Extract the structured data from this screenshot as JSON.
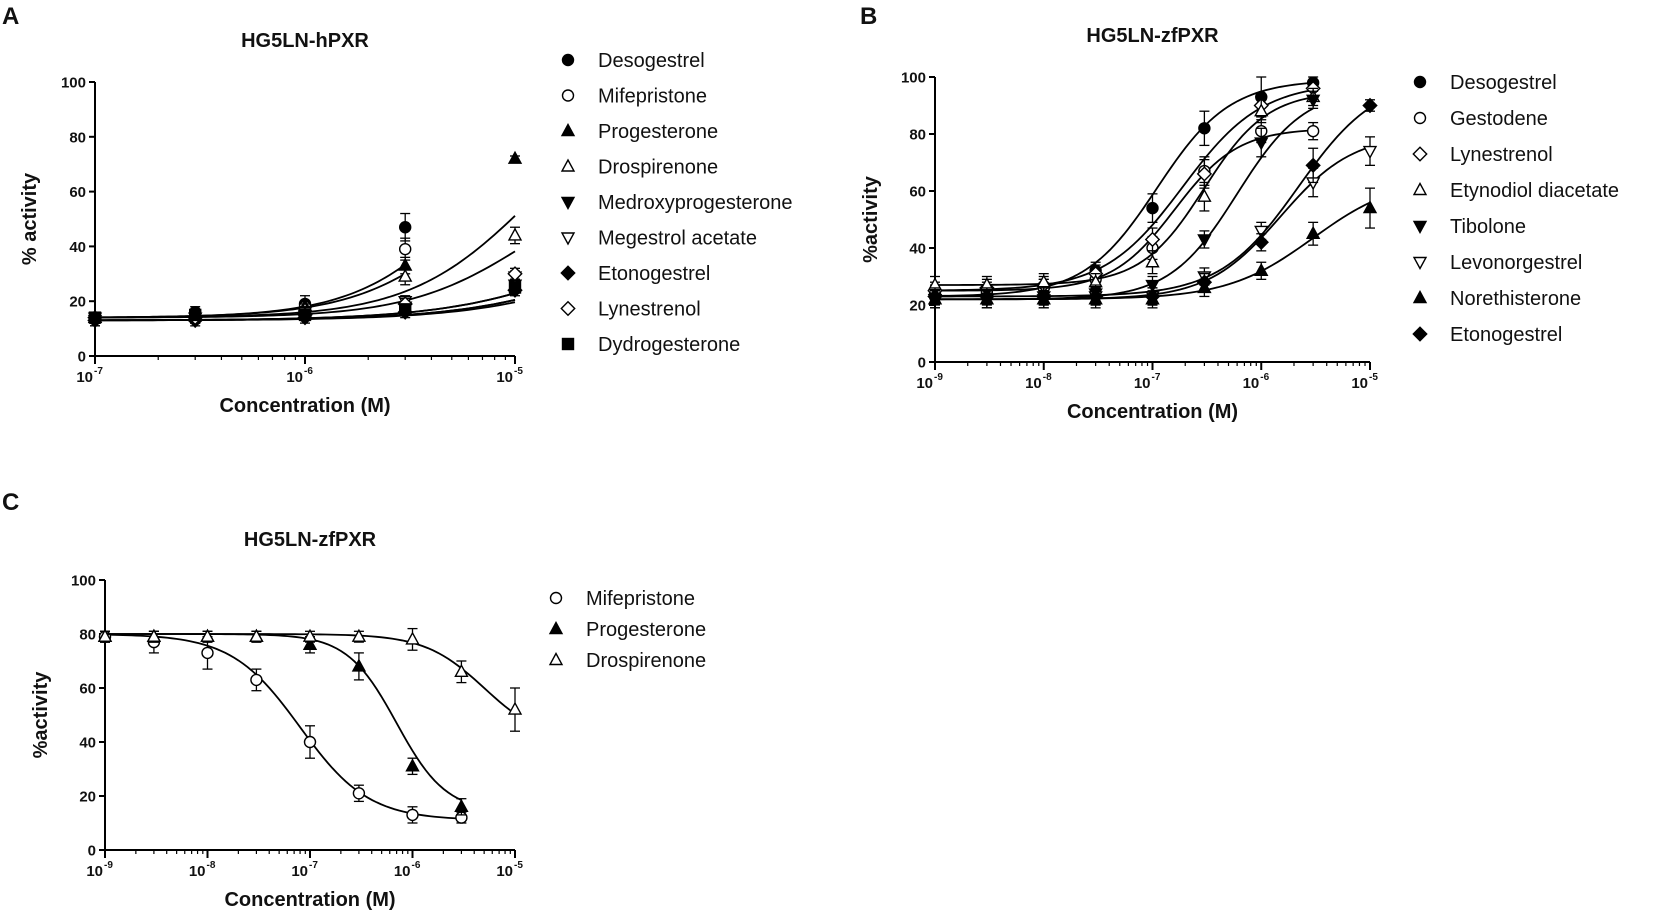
{
  "panels": [
    "A",
    "B",
    "C"
  ],
  "chart_data": [
    {
      "panel": "A",
      "type": "scatter",
      "title": "HG5LN-hPXR",
      "xlabel": "Concentration (M)",
      "ylabel": "% activity",
      "xscale": "log",
      "xlim": [
        1e-07,
        1e-05
      ],
      "ylim": [
        0,
        100
      ],
      "xticks": [
        {
          "base": "10",
          "exp": "-7",
          "value": 1e-07
        },
        {
          "base": "10",
          "exp": "-6",
          "value": 1e-06
        },
        {
          "base": "10",
          "exp": "-5",
          "value": 1e-05
        }
      ],
      "yticks": [
        0,
        20,
        40,
        60,
        80,
        100
      ],
      "legend_position": "right",
      "series": [
        {
          "name": "Desogestrel",
          "marker": "circle-filled",
          "x": [
            1e-07,
            3e-07,
            1e-06,
            3e-06
          ],
          "y": [
            14,
            16,
            19,
            47
          ],
          "err": [
            2,
            2,
            3,
            5
          ],
          "curve": {
            "bottom": 14,
            "top": 100,
            "ec50": 6.5e-06,
            "hill": 1.6
          }
        },
        {
          "name": "Mifepristone",
          "marker": "circle-open",
          "x": [
            1e-07,
            3e-07,
            1e-06,
            3e-06
          ],
          "y": [
            14,
            15,
            18,
            39
          ],
          "err": [
            2,
            2,
            2,
            4
          ],
          "curve": {
            "bottom": 14,
            "top": 100,
            "ec50": 8e-06,
            "hill": 1.5
          }
        },
        {
          "name": "Progesterone",
          "marker": "triangle-filled",
          "x": [
            1e-07,
            3e-07,
            1e-06,
            3e-06,
            1e-05
          ],
          "y": [
            14,
            15,
            18,
            33,
            72
          ],
          "err": [
            2,
            2,
            2,
            3,
            1
          ],
          "curve": {
            "bottom": 14,
            "top": 100,
            "ec50": 1.2e-05,
            "hill": 1.5
          }
        },
        {
          "name": "Drospirenone",
          "marker": "triangle-open",
          "x": [
            1e-07,
            3e-07,
            1e-06,
            3e-06,
            1e-05
          ],
          "y": [
            14,
            15,
            17,
            29,
            44
          ],
          "err": [
            2,
            2,
            2,
            3,
            3
          ],
          "curve": {
            "bottom": 14,
            "top": 70,
            "ec50": 1.2e-05,
            "hill": 1.5
          }
        },
        {
          "name": "Medroxyprogesterone",
          "marker": "triangle-down-filled",
          "x": [
            1e-07,
            3e-07,
            1e-06,
            3e-06,
            1e-05
          ],
          "y": [
            13,
            14,
            15,
            18,
            26
          ],
          "err": [
            2,
            2,
            2,
            2,
            2
          ],
          "curve": {
            "bottom": 13,
            "top": 60,
            "ec50": 4e-05,
            "hill": 1.2
          }
        },
        {
          "name": "Megestrol acetate",
          "marker": "triangle-down-open",
          "x": [
            1e-07,
            3e-07,
            1e-06,
            3e-06,
            1e-05
          ],
          "y": [
            14,
            14,
            16,
            20,
            29
          ],
          "err": [
            2,
            2,
            2,
            2,
            2
          ],
          "curve": {
            "bottom": 13,
            "top": 60,
            "ec50": 3e-05,
            "hill": 1.2
          }
        },
        {
          "name": "Etonogestrel",
          "marker": "diamond-filled",
          "x": [
            1e-07,
            3e-07,
            1e-06,
            3e-06,
            1e-05
          ],
          "y": [
            13,
            13,
            14,
            16,
            24
          ],
          "err": [
            2,
            2,
            2,
            2,
            2
          ],
          "curve": {
            "bottom": 13,
            "top": 60,
            "ec50": 4.5e-05,
            "hill": 1.2
          }
        },
        {
          "name": "Lynestrenol",
          "marker": "diamond-open",
          "x": [
            1e-07,
            3e-07,
            1e-06,
            3e-06,
            1e-05
          ],
          "y": [
            14,
            14,
            15,
            19,
            30
          ],
          "err": [
            2,
            2,
            2,
            2,
            2
          ],
          "curve": {
            "bottom": 13,
            "top": 60,
            "ec50": 3e-05,
            "hill": 1.2
          }
        },
        {
          "name": "Dydrogesterone",
          "marker": "square-filled",
          "x": [
            1e-07,
            3e-07,
            1e-06,
            3e-06,
            1e-05
          ],
          "y": [
            14,
            15,
            15,
            17,
            25
          ],
          "err": [
            2,
            2,
            2,
            2,
            2
          ],
          "curve": {
            "bottom": 13,
            "top": 60,
            "ec50": 4e-05,
            "hill": 1.2
          }
        }
      ]
    },
    {
      "panel": "B",
      "type": "scatter",
      "title": "HG5LN-zfPXR",
      "xlabel": "Concentration (M)",
      "ylabel": "%activity",
      "xscale": "log",
      "xlim": [
        1e-09,
        1e-05
      ],
      "ylim": [
        0,
        100
      ],
      "xticks": [
        {
          "base": "10",
          "exp": "-9",
          "value": 1e-09
        },
        {
          "base": "10",
          "exp": "-8",
          "value": 1e-08
        },
        {
          "base": "10",
          "exp": "-7",
          "value": 1e-07
        },
        {
          "base": "10",
          "exp": "-6",
          "value": 1e-06
        },
        {
          "base": "10",
          "exp": "-5",
          "value": 1e-05
        }
      ],
      "yticks": [
        0,
        20,
        40,
        60,
        80,
        100
      ],
      "legend_position": "right",
      "series": [
        {
          "name": "Desogestrel",
          "marker": "circle-filled",
          "x": [
            1e-09,
            3e-09,
            1e-08,
            3e-08,
            1e-07,
            3e-07,
            1e-06,
            3e-06
          ],
          "y": [
            23,
            24,
            26,
            32,
            54,
            82,
            93,
            98
          ],
          "err": [
            2,
            3,
            3,
            3,
            5,
            6,
            7,
            2
          ],
          "curve": {
            "bottom": 23,
            "top": 99,
            "ec50": 1.1e-07,
            "hill": 1.3
          }
        },
        {
          "name": "Gestodene",
          "marker": "circle-open",
          "x": [
            1e-09,
            3e-09,
            1e-08,
            3e-08,
            1e-07,
            3e-07,
            1e-06,
            3e-06
          ],
          "y": [
            24,
            25,
            26,
            29,
            40,
            67,
            81,
            81
          ],
          "err": [
            3,
            3,
            3,
            3,
            4,
            5,
            4,
            3
          ],
          "curve": {
            "bottom": 25,
            "top": 82,
            "ec50": 1.6e-07,
            "hill": 1.5
          }
        },
        {
          "name": "Lynestrenol",
          "marker": "diamond-open",
          "x": [
            1e-09,
            3e-09,
            1e-08,
            3e-08,
            1e-07,
            3e-07,
            1e-06,
            3e-06
          ],
          "y": [
            25,
            26,
            27,
            31,
            43,
            66,
            90,
            96
          ],
          "err": [
            3,
            3,
            3,
            3,
            4,
            5,
            4,
            3
          ],
          "curve": {
            "bottom": 25,
            "top": 98,
            "ec50": 1.9e-07,
            "hill": 1.2
          }
        },
        {
          "name": "Etynodiol diacetate",
          "marker": "triangle-open",
          "x": [
            1e-09,
            3e-09,
            1e-08,
            3e-08,
            1e-07,
            3e-07,
            1e-06,
            3e-06
          ],
          "y": [
            27,
            27,
            28,
            28,
            35,
            58,
            88,
            93
          ],
          "err": [
            3,
            3,
            3,
            3,
            4,
            5,
            4,
            3
          ],
          "curve": {
            "bottom": 27,
            "top": 95,
            "ec50": 3e-07,
            "hill": 1.5
          }
        },
        {
          "name": "Tibolone",
          "marker": "triangle-down-filled",
          "x": [
            1e-09,
            3e-09,
            1e-08,
            3e-08,
            1e-07,
            3e-07,
            1e-06,
            3e-06
          ],
          "y": [
            22,
            22,
            23,
            24,
            27,
            43,
            77,
            92
          ],
          "err": [
            3,
            3,
            3,
            3,
            3,
            3,
            5,
            3
          ],
          "curve": {
            "bottom": 22,
            "top": 96,
            "ec50": 6e-07,
            "hill": 1.4
          }
        },
        {
          "name": "Levonorgestrel",
          "marker": "triangle-down-open",
          "x": [
            1e-09,
            3e-09,
            1e-08,
            3e-08,
            1e-07,
            3e-07,
            1e-06,
            3e-06,
            1e-05
          ],
          "y": [
            22,
            22,
            22,
            23,
            23,
            30,
            46,
            63,
            74
          ],
          "err": [
            3,
            3,
            3,
            3,
            3,
            3,
            3,
            5,
            5
          ],
          "curve": {
            "bottom": 22,
            "top": 80,
            "ec50": 1.5e-06,
            "hill": 1.3
          }
        },
        {
          "name": "Norethisterone",
          "marker": "triangle-filled",
          "x": [
            1e-09,
            3e-09,
            1e-08,
            3e-08,
            1e-07,
            3e-07,
            1e-06,
            3e-06,
            1e-05
          ],
          "y": [
            22,
            22,
            22,
            22,
            22,
            26,
            32,
            45,
            54
          ],
          "err": [
            3,
            3,
            3,
            3,
            3,
            3,
            3,
            4,
            7
          ],
          "curve": {
            "bottom": 22,
            "top": 65,
            "ec50": 3e-06,
            "hill": 1.1
          }
        },
        {
          "name": "Etonogestrel",
          "marker": "diamond-filled",
          "x": [
            1e-09,
            3e-09,
            1e-08,
            3e-08,
            1e-07,
            3e-07,
            1e-06,
            3e-06,
            1e-05
          ],
          "y": [
            23,
            23,
            23,
            23,
            23,
            28,
            42,
            69,
            90
          ],
          "err": [
            3,
            3,
            3,
            3,
            3,
            3,
            3,
            6,
            2
          ],
          "curve": {
            "bottom": 23,
            "top": 100,
            "ec50": 2.2e-06,
            "hill": 1.2
          }
        }
      ]
    },
    {
      "panel": "C",
      "type": "scatter",
      "title": "HG5LN-zfPXR",
      "xlabel": "Concentration (M)",
      "ylabel": "%activity",
      "xscale": "log",
      "xlim": [
        1e-09,
        1e-05
      ],
      "ylim": [
        0,
        100
      ],
      "xticks": [
        {
          "base": "10",
          "exp": "-9",
          "value": 1e-09
        },
        {
          "base": "10",
          "exp": "-8",
          "value": 1e-08
        },
        {
          "base": "10",
          "exp": "-7",
          "value": 1e-07
        },
        {
          "base": "10",
          "exp": "-6",
          "value": 1e-06
        },
        {
          "base": "10",
          "exp": "-5",
          "value": 1e-05
        }
      ],
      "yticks": [
        0,
        20,
        40,
        60,
        80,
        100
      ],
      "legend_position": "right",
      "series": [
        {
          "name": "Mifepristone",
          "marker": "circle-open",
          "x": [
            1e-09,
            3e-09,
            1e-08,
            3e-08,
            1e-07,
            3e-07,
            1e-06,
            3e-06
          ],
          "y": [
            79,
            77,
            73,
            63,
            40,
            21,
            13,
            12
          ],
          "err": [
            2,
            4,
            6,
            4,
            6,
            3,
            3,
            2
          ],
          "curve": {
            "bottom": 11,
            "top": 80,
            "ec50": 8e-08,
            "hill": -1.3
          }
        },
        {
          "name": "Progesterone",
          "marker": "triangle-filled",
          "x": [
            1e-09,
            3e-09,
            1e-08,
            3e-08,
            1e-07,
            3e-07,
            1e-06,
            3e-06
          ],
          "y": [
            79,
            79,
            79,
            79,
            76,
            68,
            31,
            16
          ],
          "err": [
            2,
            2,
            2,
            2,
            3,
            5,
            3,
            3
          ],
          "curve": {
            "bottom": 14,
            "top": 80,
            "ec50": 7e-07,
            "hill": -1.8
          }
        },
        {
          "name": "Drospirenone",
          "marker": "triangle-open",
          "x": [
            1e-09,
            3e-09,
            1e-08,
            3e-08,
            1e-07,
            3e-07,
            1e-06,
            3e-06,
            1e-05
          ],
          "y": [
            79,
            79,
            79,
            79,
            79,
            79,
            78,
            66,
            52
          ],
          "err": [
            2,
            2,
            2,
            2,
            2,
            2,
            4,
            4,
            8
          ],
          "curve": {
            "bottom": 40,
            "top": 80,
            "ec50": 5e-06,
            "hill": -1.5
          }
        }
      ]
    }
  ]
}
